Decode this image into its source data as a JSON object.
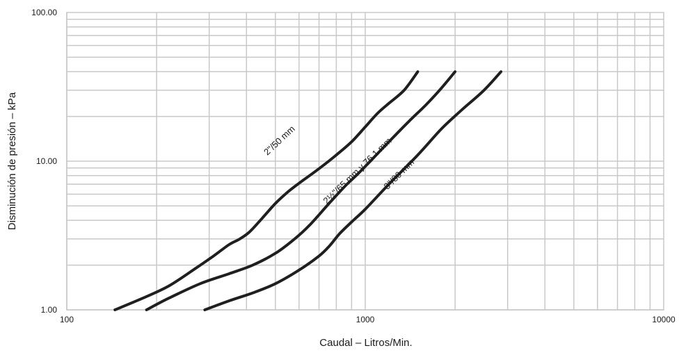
{
  "chart_data": {
    "type": "line",
    "xlabel": "Caudal – Litros/Min.",
    "ylabel": "Disminución de presión – kPa",
    "x_scale": "log",
    "y_scale": "log",
    "xlim": [
      100,
      10000
    ],
    "ylim": [
      1,
      100
    ],
    "grid": true,
    "x_ticks": [
      "100",
      "1000",
      "10000"
    ],
    "y_ticks": [
      "1.00",
      "10.00",
      "100.00"
    ],
    "series": [
      {
        "name": "2\"/50 mm",
        "x": [
          145,
          180,
          220,
          270,
          310,
          350,
          380,
          410,
          450,
          500,
          550,
          600,
          700,
          800,
          900,
          1000,
          1100,
          1200,
          1350,
          1500
        ],
        "y": [
          1.0,
          1.2,
          1.45,
          1.9,
          2.3,
          2.75,
          3.0,
          3.35,
          4.1,
          5.2,
          6.2,
          7.1,
          8.9,
          11.0,
          13.5,
          17.0,
          21.0,
          24.5,
          30.0,
          40.0
        ]
      },
      {
        "name": "2½\"/65 mm y 76.1 mm",
        "x": [
          185,
          220,
          280,
          350,
          420,
          500,
          580,
          650,
          750,
          850,
          950,
          1050,
          1200,
          1400,
          1600,
          1800,
          2000
        ],
        "y": [
          1.0,
          1.2,
          1.5,
          1.75,
          2.0,
          2.4,
          3.0,
          3.7,
          5.1,
          6.7,
          8.3,
          10.2,
          13.5,
          18.5,
          24.0,
          31.0,
          40.0
        ]
      },
      {
        "name": "3\"/80 mm",
        "x": [
          290,
          350,
          420,
          500,
          600,
          700,
          760,
          820,
          900,
          1000,
          1200,
          1500,
          1800,
          2100,
          2500,
          2850
        ],
        "y": [
          1.0,
          1.15,
          1.3,
          1.5,
          1.85,
          2.3,
          2.7,
          3.25,
          3.9,
          4.75,
          7.0,
          11.0,
          16.5,
          22.0,
          30.0,
          40.0
        ]
      }
    ]
  }
}
